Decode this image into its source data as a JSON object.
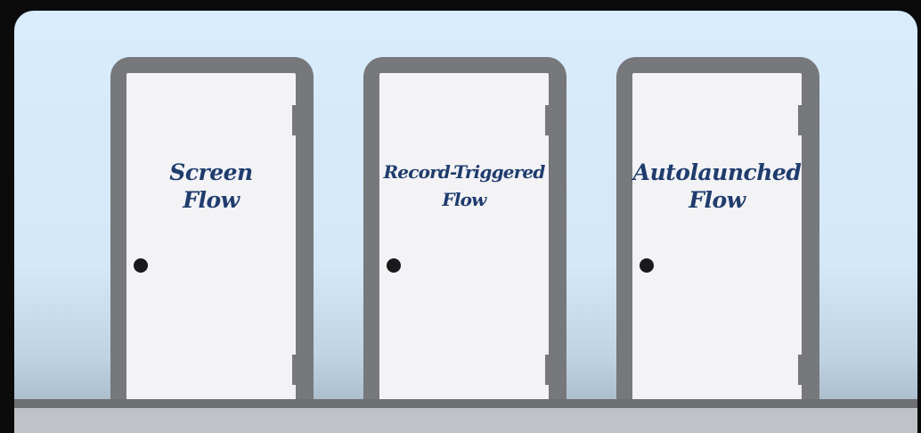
{
  "doors": [
    {
      "line1": "Screen",
      "line2": "Flow"
    },
    {
      "line1": "Record-Triggered",
      "line2": "Flow"
    },
    {
      "line1": "Autolaunched",
      "line2": "Flow"
    }
  ]
}
